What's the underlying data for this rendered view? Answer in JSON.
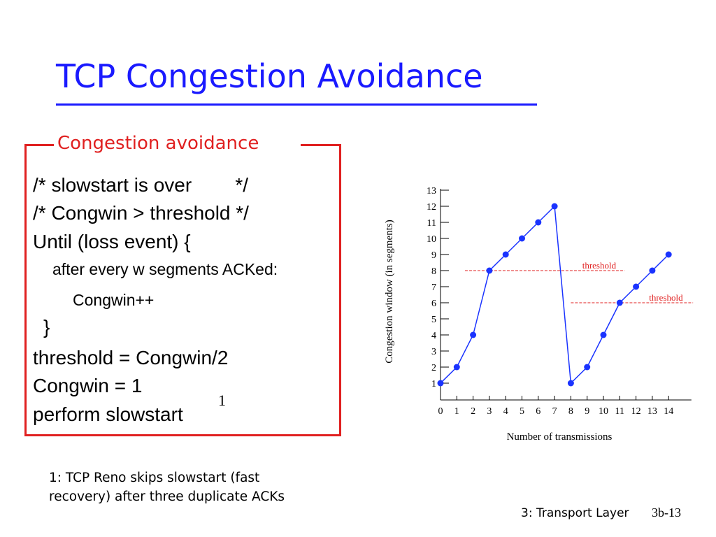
{
  "slide": {
    "title": "TCP Congestion Avoidance",
    "box_label": "Congestion avoidance",
    "code": [
      "/* slowstart is over        */",
      "/* Congwin > threshold */",
      "Until (loss event) {",
      "after every w segments ACKed:",
      "Congwin++",
      "}",
      "threshold = Congwin/2",
      "Congwin = 1",
      "perform slowstart"
    ],
    "footnote_marker": "1",
    "footnote": [
      "1: TCP Reno skips slowstart (fast",
      "recovery) after three duplicate ACKs"
    ],
    "footer_left": "3: Transport Layer",
    "footer_right": "3b-13"
  },
  "chart_data": {
    "type": "line",
    "xlabel": "Number of transmissions",
    "ylabel": "Congestion window  (in segments)",
    "x_ticks": [
      "0",
      "1",
      "2",
      "3",
      "4",
      "5",
      "6",
      "7",
      "8",
      "9",
      "10",
      "11",
      "12",
      "13",
      "14"
    ],
    "y_ticks": [
      "1",
      "2",
      "3",
      "4",
      "5",
      "6",
      "7",
      "8",
      "9",
      "10",
      "11",
      "12",
      "13"
    ],
    "xlim": [
      0,
      14
    ],
    "ylim": [
      1,
      13
    ],
    "grid": false,
    "series": [
      {
        "x": [
          0,
          1,
          2,
          3,
          4,
          5,
          6,
          7,
          8,
          9,
          10,
          11,
          12,
          13,
          14
        ],
        "y": [
          1,
          2,
          4,
          8,
          9,
          10,
          11,
          12,
          1,
          2,
          4,
          6,
          7,
          8,
          9
        ],
        "color": "#1a33ff"
      }
    ],
    "annotations": [
      {
        "label": "threshold",
        "y": 8,
        "x_start": 1.5,
        "x_end": 11.3,
        "color": "#e02020"
      },
      {
        "label": "threshold",
        "y": 6,
        "x_start": 8.0,
        "x_end": 15.5,
        "color": "#e02020"
      }
    ]
  }
}
